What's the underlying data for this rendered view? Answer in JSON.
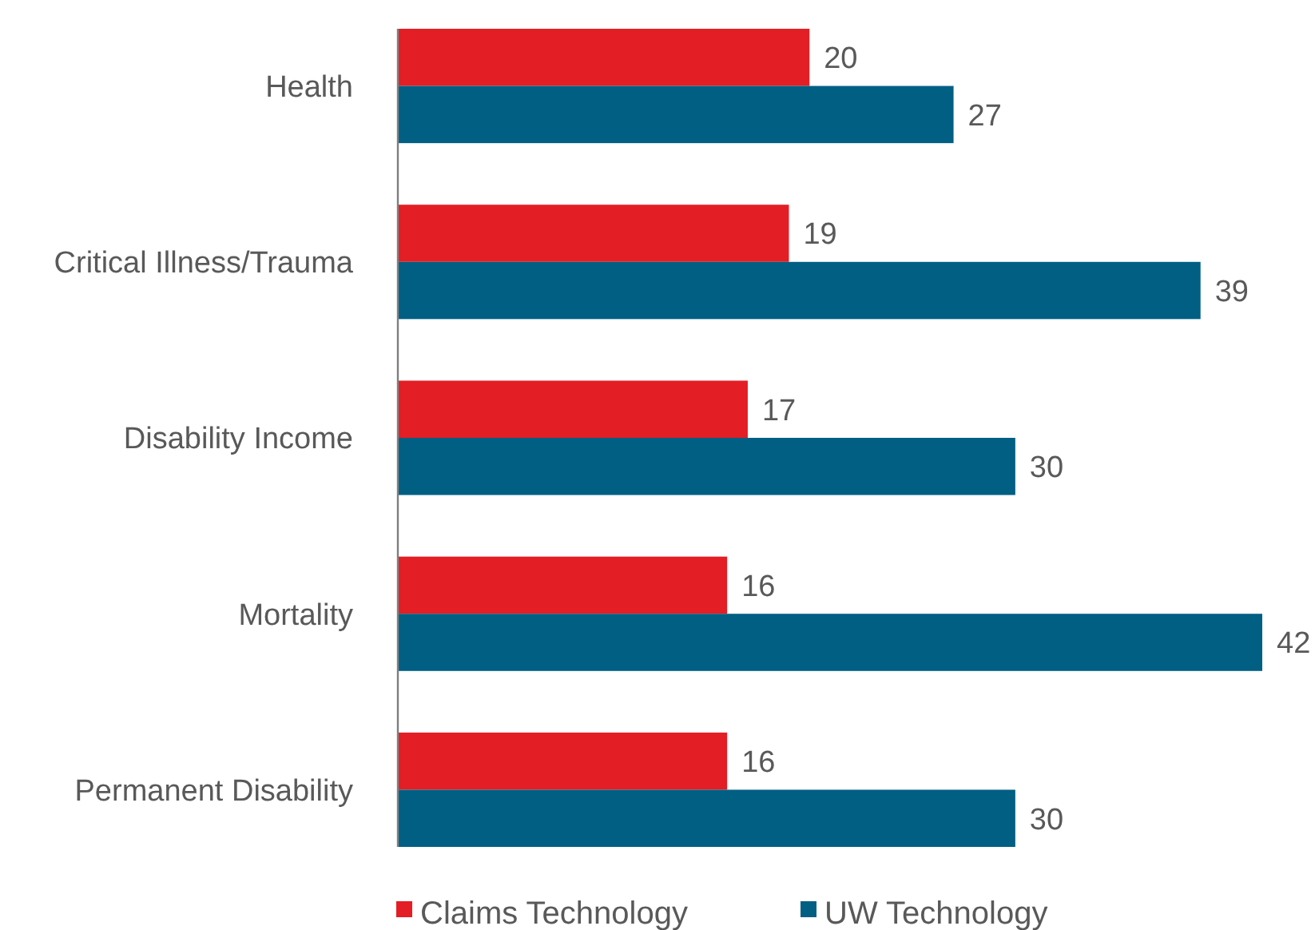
{
  "chart_data": {
    "type": "bar",
    "orientation": "horizontal",
    "categories": [
      "Health",
      "Critical Illness/Trauma",
      "Disability Income",
      "Mortality",
      "Permanent Disability"
    ],
    "series": [
      {
        "name": "Claims Technology",
        "color": "#e31e24",
        "values": [
          20,
          19,
          17,
          16,
          16
        ]
      },
      {
        "name": "UW Technology",
        "color": "#005f83",
        "values": [
          27,
          39,
          30,
          42,
          30
        ]
      }
    ],
    "data_labels": true,
    "legend": "bottom"
  }
}
